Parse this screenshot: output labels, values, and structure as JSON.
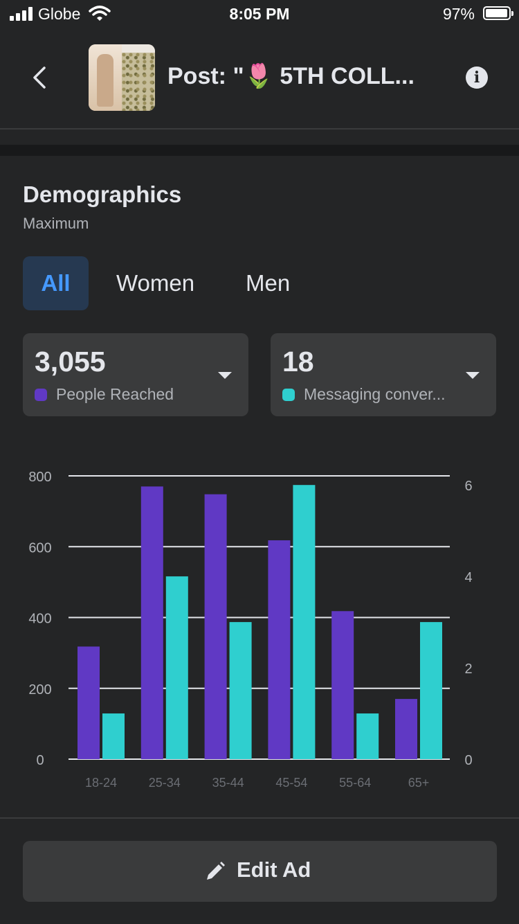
{
  "status_bar": {
    "carrier": "Globe",
    "time": "8:05 PM",
    "battery": "97%"
  },
  "header": {
    "title": "Post: \"🌷 5TH COLL...",
    "icons": [
      "back-chevron-icon",
      "info-icon"
    ]
  },
  "section": {
    "title": "Demographics",
    "subtitle": "Maximum"
  },
  "tabs": [
    {
      "label": "All",
      "active": true
    },
    {
      "label": "Women",
      "active": false
    },
    {
      "label": "Men",
      "active": false
    }
  ],
  "metrics": [
    {
      "value": "3,055",
      "label": "People Reached",
      "color": "#6039c4"
    },
    {
      "value": "18",
      "label": "Messaging conver...",
      "color": "#2fcfcf"
    }
  ],
  "colors": {
    "reached": "#6039c4",
    "messaging": "#2fcfcf",
    "active_tab_bg": "#263951",
    "active_tab_text": "#4599ff"
  },
  "chart_data": {
    "type": "bar",
    "categories": [
      "18-24",
      "25-34",
      "35-44",
      "45-54",
      "55-64",
      "65+"
    ],
    "series": [
      {
        "values": [
          318,
          770,
          748,
          618,
          418,
          170
        ],
        "axis": "left",
        "color": "#6039c4"
      },
      {
        "values": [
          1,
          4,
          3,
          6,
          1,
          3
        ],
        "axis": "right",
        "color": "#2fcfcf"
      }
    ],
    "y_left": {
      "ticks": [
        "800",
        "600",
        "400",
        "200",
        "0"
      ],
      "range": [
        0,
        800
      ]
    },
    "y_right": {
      "ticks": [
        "6",
        "4",
        "2",
        "0"
      ],
      "range": [
        0,
        6.2
      ]
    },
    "grid": true
  },
  "footer": {
    "edit_label": "Edit Ad"
  }
}
